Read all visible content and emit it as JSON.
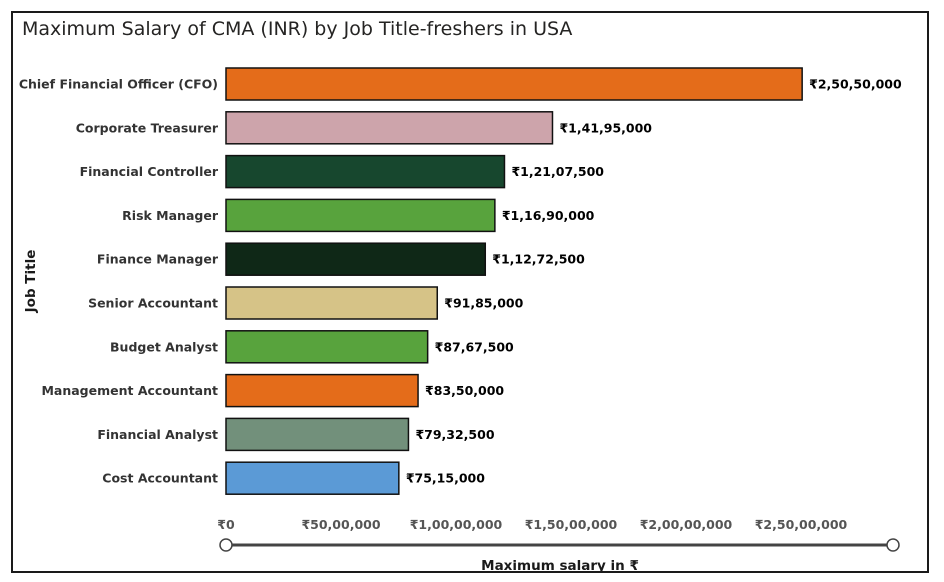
{
  "chart_data": {
    "type": "bar",
    "orientation": "horizontal",
    "title": "Maximum Salary of CMA (INR) by Job Title-freshers in USA",
    "xlabel": "Maximum salary in ₹",
    "ylabel": "Job Title",
    "xlim": [
      0,
      290000000
    ],
    "x_ticks": [
      0,
      50000000,
      100000000,
      150000000,
      200000000,
      250000000
    ],
    "x_tick_labels": [
      "₹0",
      "₹50,00,000",
      "₹1,00,00,000",
      "₹1,50,00,000",
      "₹2,00,00,000",
      "₹2,50,00,000"
    ],
    "grid": false,
    "legend": "none",
    "categories": [
      "Chief Financial Officer (CFO)",
      "Corporate Treasurer",
      "Financial Controller",
      "Risk Manager",
      "Finance Manager",
      "Senior Accountant",
      "Budget Analyst",
      "Management Accountant",
      "Financial Analyst",
      "Cost Accountant"
    ],
    "values": [
      250500000,
      141950000,
      121075000,
      116900000,
      112725000,
      91850000,
      87675000,
      83500000,
      79325000,
      75150000
    ],
    "value_labels": [
      "₹2,50,50,000",
      "₹1,41,95,000",
      "₹1,21,07,500",
      "₹1,16,90,000",
      "₹1,12,72,500",
      "₹91,85,000",
      "₹87,67,500",
      "₹83,50,000",
      "₹79,32,500",
      "₹75,15,000"
    ],
    "colors": [
      "#e46c1a",
      "#cda4ab",
      "#17472e",
      "#58a33d",
      "#0f2817",
      "#d6c387",
      "#58a33d",
      "#e46c1a",
      "#72907b",
      "#5b9ad6"
    ]
  }
}
